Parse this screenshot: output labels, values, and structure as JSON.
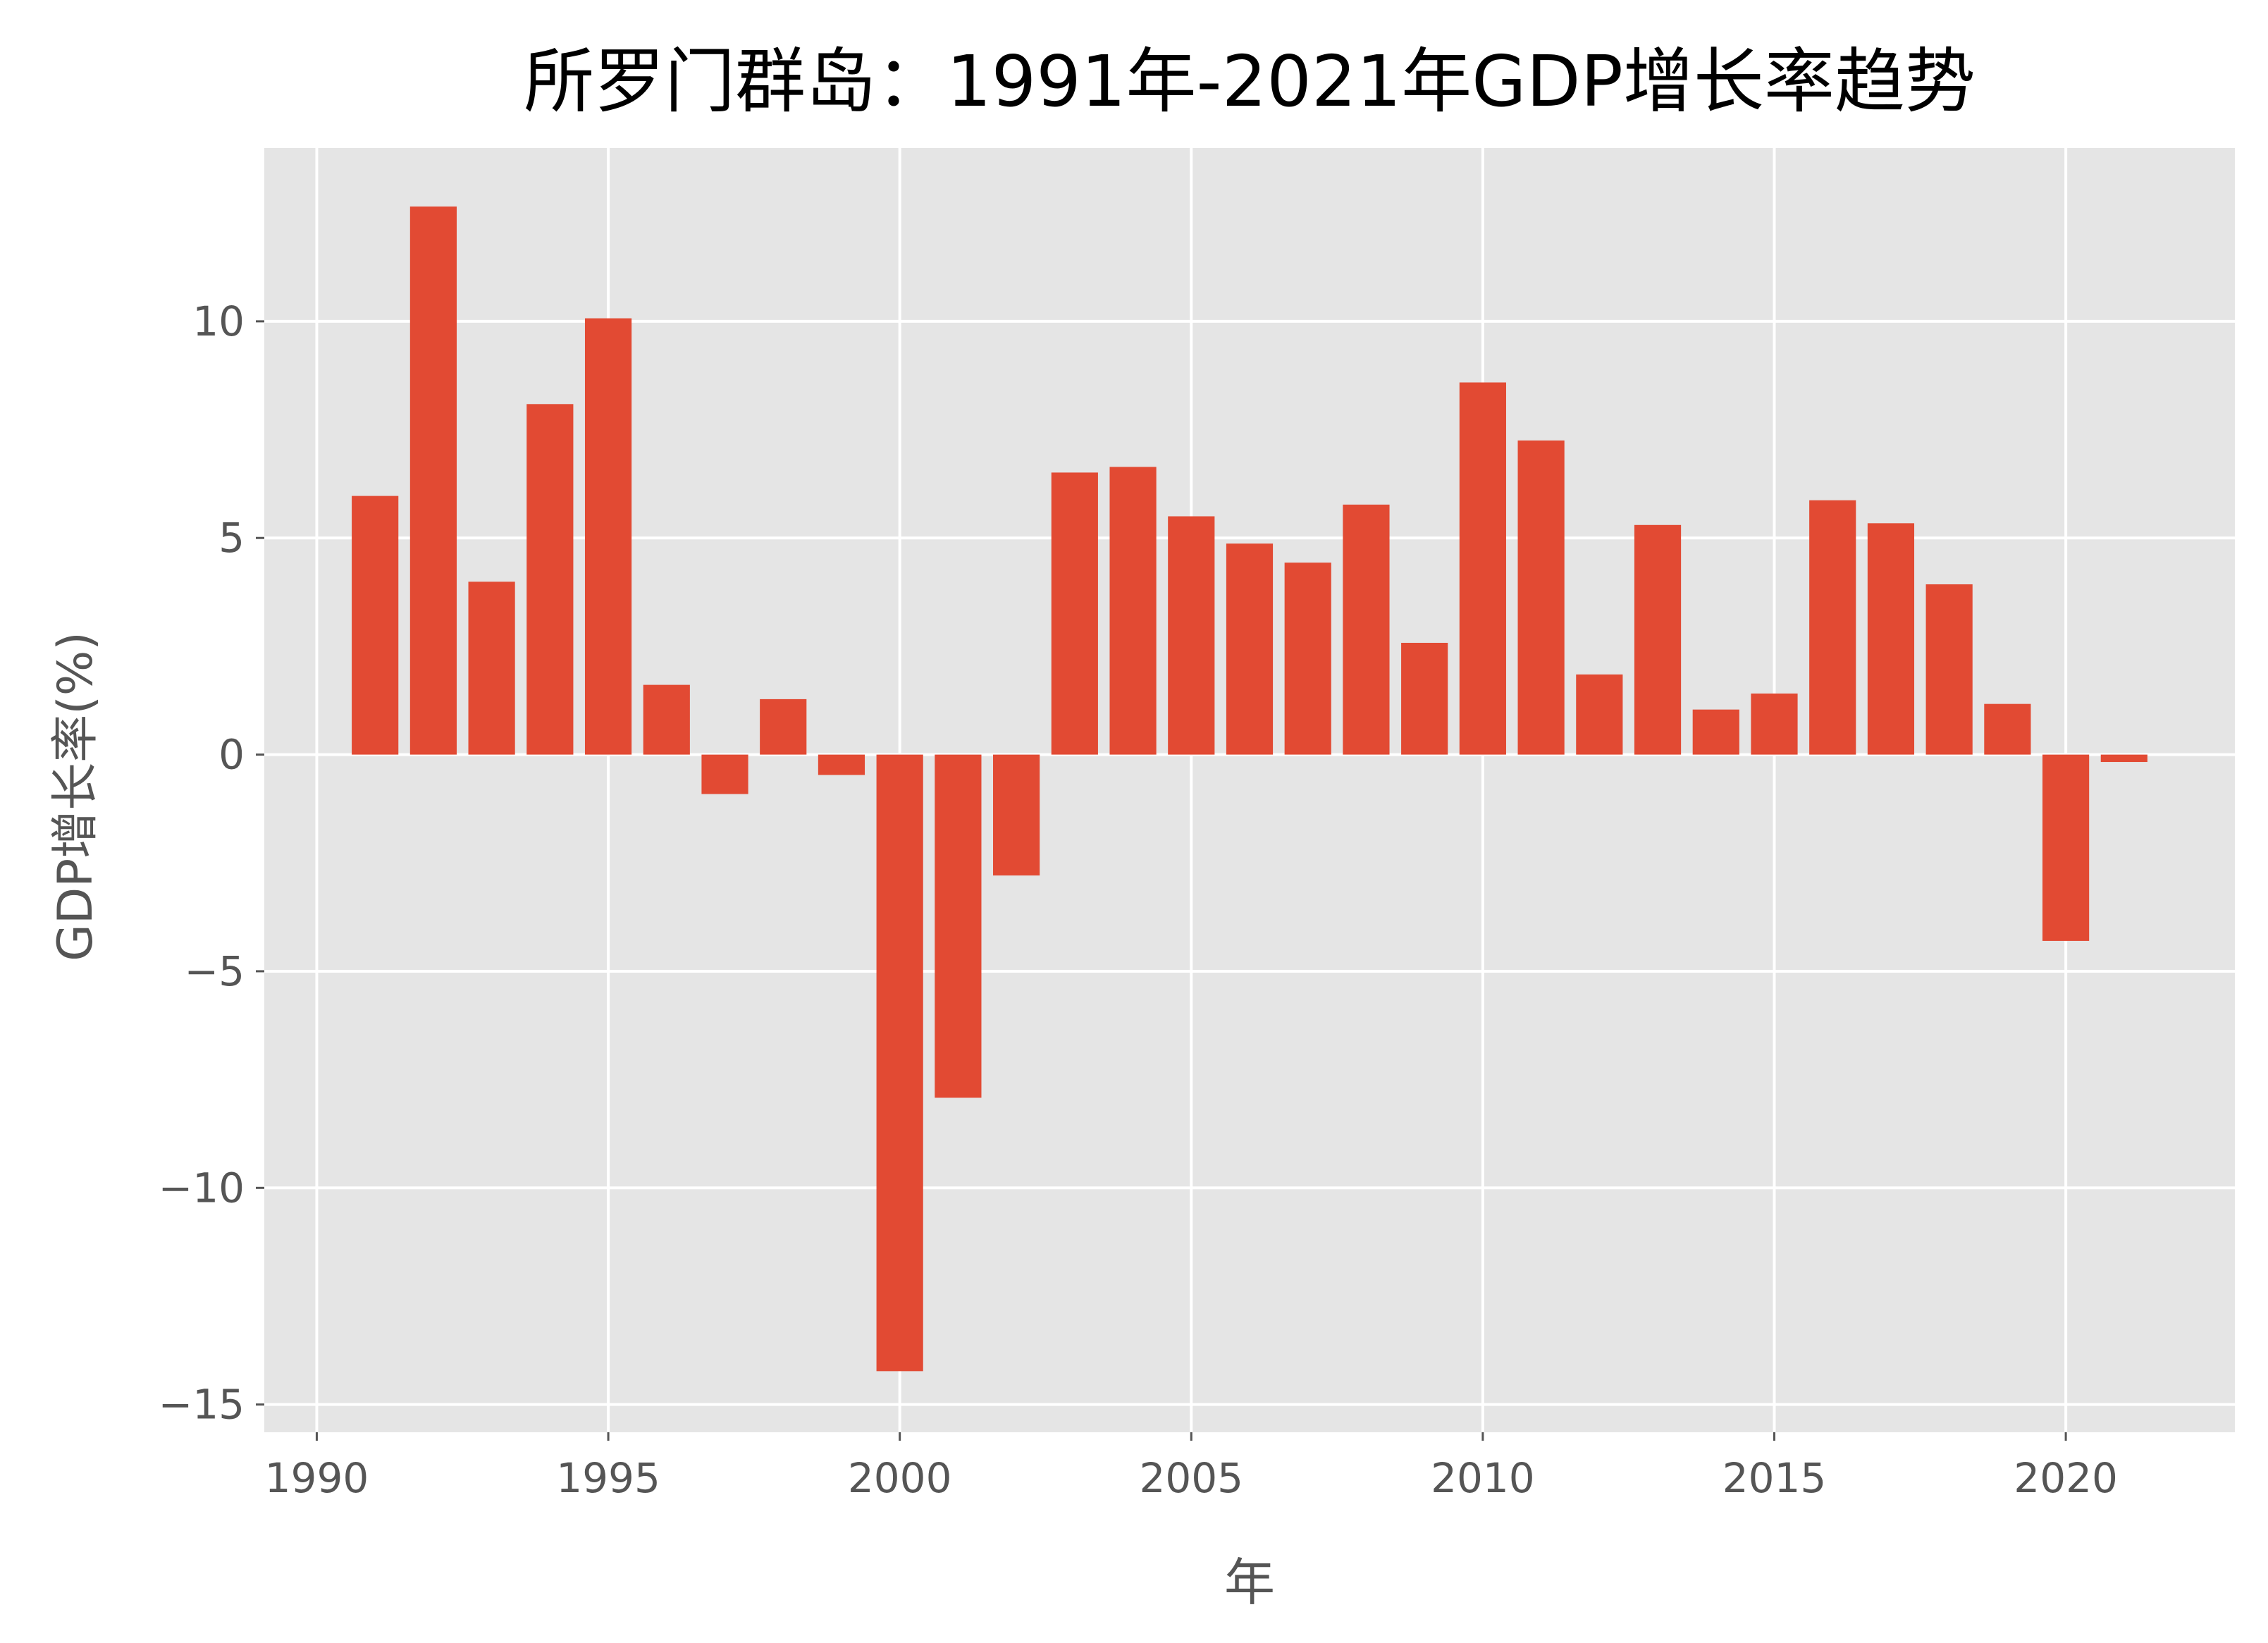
{
  "chart_data": {
    "type": "bar",
    "title": "所罗门群岛：1991年-2021年GDP增长率趋势",
    "xlabel": "年",
    "ylabel": "GDP增长率(%)",
    "x": [
      1991,
      1992,
      1993,
      1994,
      1995,
      1996,
      1997,
      1998,
      1999,
      2000,
      2001,
      2002,
      2003,
      2004,
      2005,
      2006,
      2007,
      2008,
      2009,
      2010,
      2011,
      2012,
      2013,
      2014,
      2015,
      2016,
      2017,
      2018,
      2019,
      2020,
      2021
    ],
    "values": [
      5.97,
      12.65,
      3.99,
      8.09,
      10.07,
      1.61,
      -0.91,
      1.28,
      -0.47,
      -14.23,
      -7.92,
      -2.79,
      6.51,
      6.64,
      5.5,
      4.87,
      4.43,
      5.77,
      2.58,
      8.59,
      7.25,
      1.85,
      5.3,
      1.04,
      1.41,
      5.87,
      5.34,
      3.93,
      1.17,
      -4.3,
      -0.17
    ],
    "xlim": [
      1989.1,
      2022.9
    ],
    "ylim": [
      -15.64,
      14.0
    ],
    "xticks": [
      1990,
      1995,
      2000,
      2005,
      2010,
      2015,
      2020
    ],
    "yticks": [
      -15,
      -10,
      -5,
      0,
      5,
      10
    ],
    "ytick_labels": [
      "−15",
      "−10",
      "−5",
      "0",
      "5",
      "10"
    ],
    "grid": true,
    "bar_color": "#E24A33",
    "background_color": "#E5E5E5"
  }
}
